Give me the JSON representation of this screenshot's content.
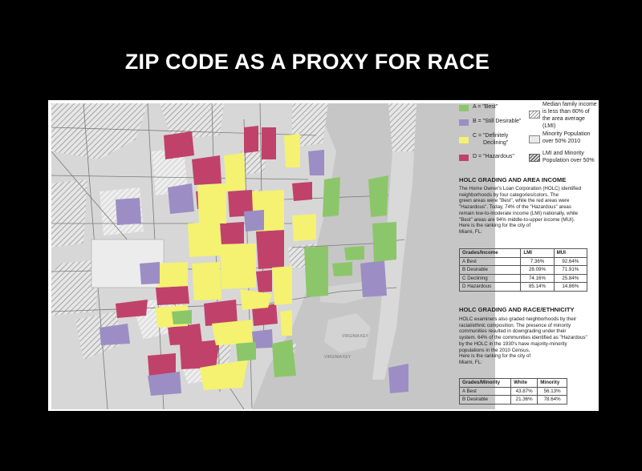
{
  "slide": {
    "title": "ZIP CODE AS A PROXY FOR RACE"
  },
  "colors": {
    "best": "#8cc66a",
    "still_desirable": "#9c8ec4",
    "definitely_declining": "#f4f270",
    "hazardous": "#c0426a"
  },
  "map": {
    "place_labels": [
      "VIRGINIA KEY",
      "VIRGINIA KEY"
    ]
  },
  "legend": {
    "items": [
      {
        "icon": "green-swatch",
        "label": "A = \"Best\""
      },
      {
        "icon": "purple-swatch",
        "label": "B = \"Still Desirable\""
      },
      {
        "icon": "yellow-swatch",
        "label_line1": "C = \"Definitely",
        "label_line2": "Declining\""
      },
      {
        "icon": "red-swatch",
        "label": "D = \"Hazardous\""
      },
      {
        "icon": "hatch-swatch",
        "label_line1": "Median family income",
        "label_line2": "is less than 80% of",
        "label_line3": "the area average (LMI)"
      },
      {
        "icon": "dots-swatch",
        "label_line1": "Minority Population",
        "label_line2": "over 50% 2010"
      },
      {
        "icon": "dark-hatch-swatch",
        "label_line1": "LMI and Minority",
        "label_line2": "Population over 50%"
      }
    ]
  },
  "income": {
    "heading": "HOLC GRADING AND AREA INCOME",
    "lines": [
      "The Home Owner's Loan Corporation (HOLC) identified",
      "neighborhoods by four categories/colors. The",
      "green areas were \"Best\", while the red areas were",
      "\"Hazardous\". Today, 74% of the \"Hazardous\" areas",
      "remain low-to-moderate income (LMI) nationally, while",
      "\"Best\" areas are 94% middle-to-upper income (MUI).",
      "Here is the ranking for the city of",
      "Miami, FL:"
    ],
    "table": {
      "headers": [
        "Grades/Income",
        "LMI",
        "MUI"
      ],
      "rows": [
        [
          "A Best",
          "7.36%",
          "92.64%"
        ],
        [
          "B Desirable",
          "28.09%",
          "71.91%"
        ],
        [
          "C Declining",
          "74.16%",
          "25.84%"
        ],
        [
          "D Hazardous",
          "85.14%",
          "14.86%"
        ]
      ]
    }
  },
  "race": {
    "heading": "HOLC GRADING AND RACE/ETHNICITY",
    "lines": [
      "HOLC examiners also graded neighborhoods by their",
      "racial/ethnic composition. The presence of minority",
      "communities resulted in downgrading under their",
      "system. 64% of the communities identified as \"Hazardous\"",
      "by the HOLC in the 1930's have majority-minority",
      "populations in the 2010 Census.",
      "Here is the ranking for the city of",
      "Miami, FL:"
    ],
    "table": {
      "headers": [
        "Grades/Minority",
        "White",
        "Minority"
      ],
      "rows": [
        [
          "A Best",
          "43.87%",
          "56.13%"
        ],
        [
          "B Desirable",
          "21.36%",
          "78.64%"
        ]
      ]
    }
  }
}
